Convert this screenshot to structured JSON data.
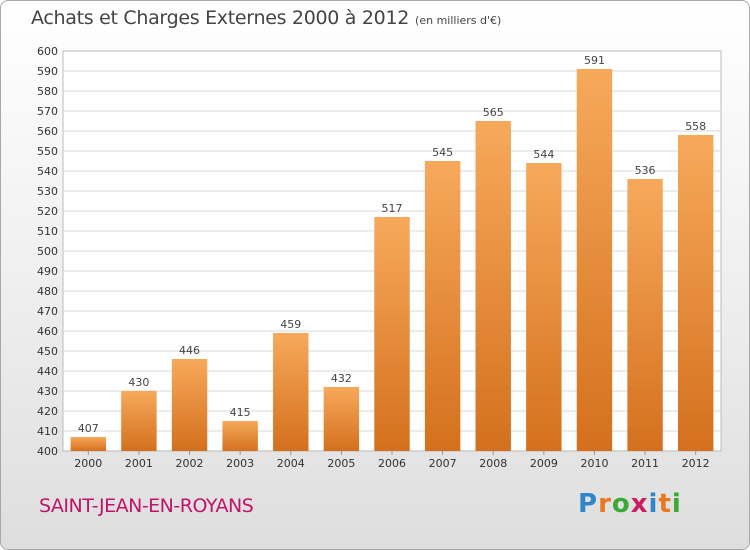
{
  "title": "Achats et Charges Externes 2000 à 2012",
  "unit_label": "(en milliers d'€)",
  "commune": "SAINT-JEAN-EN-ROYANS",
  "logo": {
    "text": "Proxiti"
  },
  "colors": {
    "bar_top": "#f7a95b",
    "bar_bottom": "#d4701d",
    "commune": "#c0136a"
  },
  "chart_data": {
    "type": "bar",
    "title": "Achats et Charges Externes 2000 à 2012",
    "xlabel": "",
    "ylabel": "",
    "categories": [
      "2000",
      "2001",
      "2002",
      "2003",
      "2004",
      "2005",
      "2006",
      "2007",
      "2008",
      "2009",
      "2010",
      "2011",
      "2012"
    ],
    "values": [
      407,
      430,
      446,
      415,
      459,
      432,
      517,
      545,
      565,
      544,
      591,
      536,
      558
    ],
    "ylim": [
      400,
      600
    ],
    "ytick_step": 10,
    "grid": true
  }
}
